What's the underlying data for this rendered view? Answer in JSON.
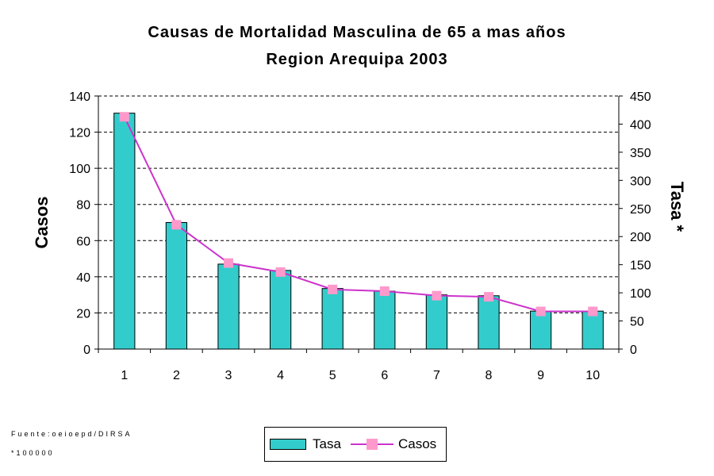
{
  "chart_data": {
    "type": "bar+line",
    "title": "Causas de Mortalidad Masculina de 65 a mas años",
    "subtitle": "Region Arequipa 2003",
    "categories": [
      "1",
      "2",
      "3",
      "4",
      "5",
      "6",
      "7",
      "8",
      "9",
      "10"
    ],
    "series": [
      {
        "name": "Tasa",
        "type": "bar",
        "axis": "left",
        "color": "#33cccc",
        "values": [
          130.5,
          70,
          47,
          43.5,
          33.5,
          32,
          30,
          29.5,
          21,
          21
        ]
      },
      {
        "name": "Casos",
        "type": "line",
        "axis": "right",
        "color": "#cc33cc",
        "marker_color": "#ff99cc",
        "values": [
          413,
          221,
          153,
          137,
          106,
          103,
          95,
          93,
          67,
          67
        ]
      }
    ],
    "ylabel": "Casos",
    "ylabel_right": "Tasa *",
    "ylim": [
      0,
      140
    ],
    "yticks": [
      "0",
      "20",
      "40",
      "60",
      "80",
      "100",
      "120",
      "140"
    ],
    "ylim_right": [
      0,
      450
    ],
    "yticks_right": [
      "0",
      "50",
      "100",
      "150",
      "200",
      "250",
      "300",
      "350",
      "400",
      "450"
    ],
    "grid": true,
    "legend": [
      "Tasa",
      "Casos"
    ]
  },
  "notes": {
    "source": "Fuente:oeioepd/DIRSA",
    "rate": "*100000"
  },
  "legend_labels": {
    "tasa": "Tasa",
    "casos": "Casos"
  }
}
